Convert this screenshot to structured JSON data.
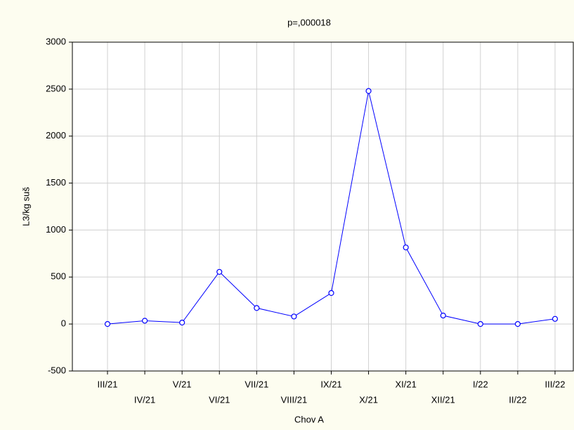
{
  "chart_data": {
    "type": "line",
    "title": "p=,000018",
    "x_label": "Chov A",
    "y_label": "L3/kg suš",
    "categories": [
      "III/21",
      "IV/21",
      "V/21",
      "VI/21",
      "VII/21",
      "VIII/21",
      "IX/21",
      "X/21",
      "XI/21",
      "XII/21",
      "I/22",
      "II/22",
      "III/22"
    ],
    "series": [
      {
        "name": "L3/kg suš",
        "color": "#0000ff",
        "values": [
          0,
          35,
          15,
          555,
          170,
          80,
          330,
          2480,
          815,
          90,
          0,
          0,
          55
        ]
      }
    ],
    "ylim": [
      -500,
      3000
    ],
    "yticks": [
      -500,
      0,
      500,
      1000,
      1500,
      2000,
      2500,
      3000
    ],
    "grid": true
  }
}
